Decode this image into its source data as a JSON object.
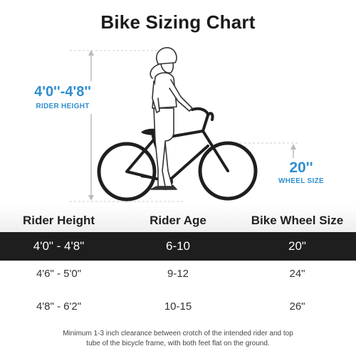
{
  "title": "Bike Sizing Chart",
  "rider_height": {
    "value": "4'0''-4'8''",
    "caption": "RIDER HEIGHT"
  },
  "wheel_size": {
    "value": "20''",
    "caption": "WHEEL SIZE"
  },
  "table": {
    "headers": [
      "Rider Height",
      "Rider Age",
      "Bike Wheel Size"
    ],
    "rows": [
      [
        "4'0\"  - 4'8\"",
        "6-10",
        "20\""
      ],
      [
        "4'6\"  - 5'0\"",
        "9-12",
        "24\""
      ],
      [
        "4'8\"  - 6'2\"",
        "10-15",
        "26\""
      ]
    ]
  },
  "note": "Minimum 1-3 inch clearance between crotch of the intended rider and top tube of the bicycle frame, with both feet flat on the ground.",
  "colors": {
    "accent": "#2f8fd0",
    "highlight_row": "#1e1e1e",
    "guide": "#bbbbbb"
  },
  "icons": [
    "rider-height-arrow-icon",
    "wheel-size-arrow-icon",
    "rider-with-bike-illustration"
  ]
}
